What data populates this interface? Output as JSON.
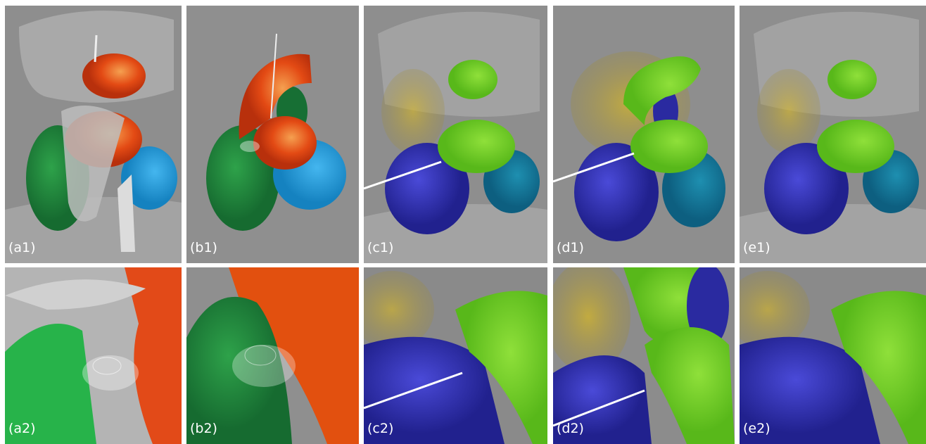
{
  "panels": [
    {
      "label": "(a1)"
    },
    {
      "label": "(b1)"
    },
    {
      "label": "(c1)"
    },
    {
      "label": "(d1)"
    },
    {
      "label": "(e1)"
    },
    {
      "label": "(a2)"
    },
    {
      "label": "(b2)"
    },
    {
      "label": "(c2)"
    },
    {
      "label": "(d2)"
    },
    {
      "label": "(e2)"
    }
  ]
}
